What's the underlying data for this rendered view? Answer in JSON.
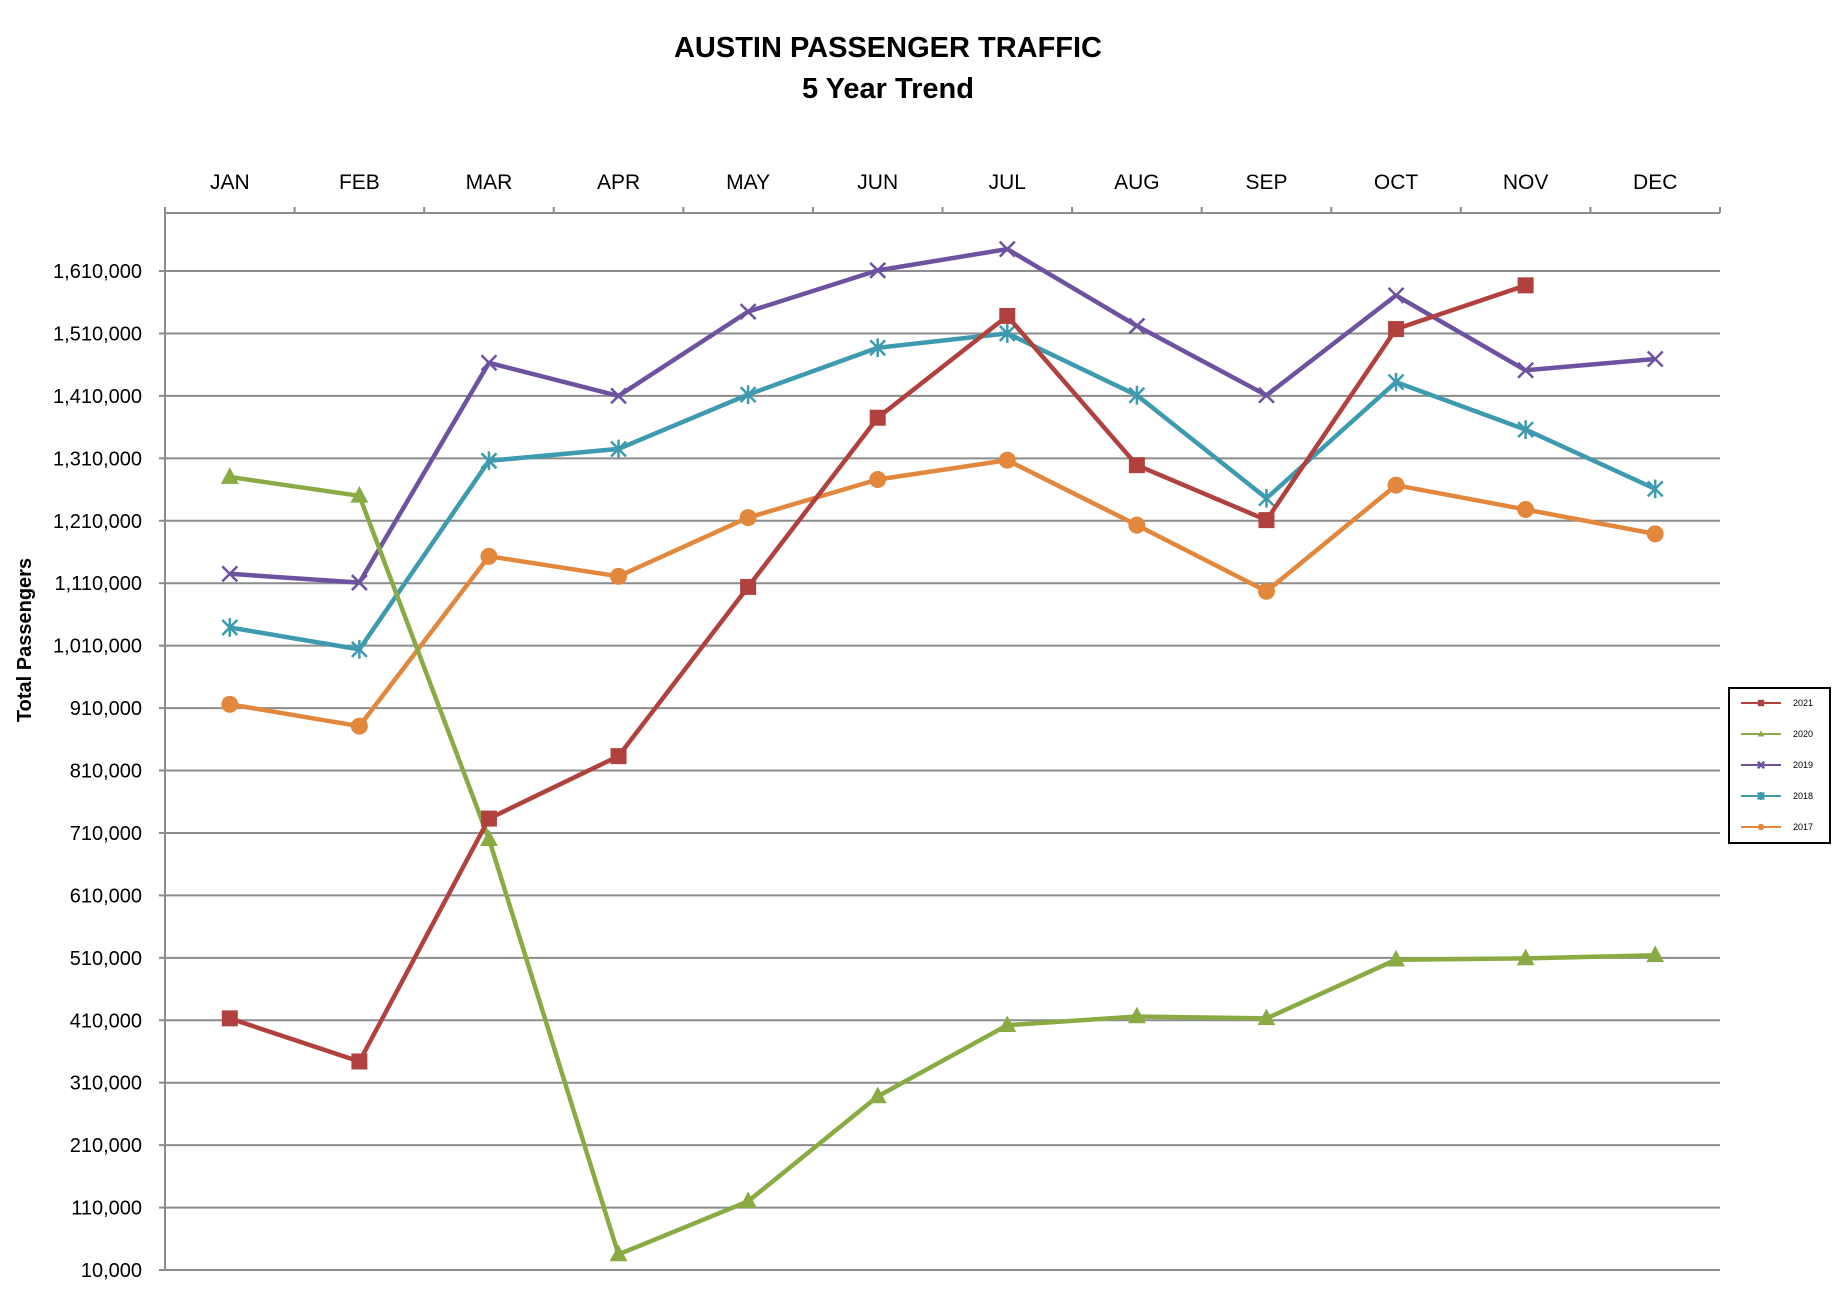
{
  "chart_data": {
    "type": "line",
    "title": "AUSTIN PASSENGER TRAFFIC",
    "subtitle": "5 Year Trend",
    "xlabel": "",
    "ylabel": "Total Passengers",
    "categories": [
      "JAN",
      "FEB",
      "MAR",
      "APR",
      "MAY",
      "JUN",
      "JUL",
      "AUG",
      "SEP",
      "OCT",
      "NOV",
      "DEC"
    ],
    "xaxis_position": "top",
    "ylim": [
      10000,
      1650000
    ],
    "yticks": [
      10000,
      110000,
      210000,
      310000,
      410000,
      510000,
      610000,
      710000,
      810000,
      910000,
      1010000,
      1110000,
      1210000,
      1310000,
      1410000,
      1510000,
      1610000
    ],
    "ytick_labels": [
      "10,000",
      "110,000",
      "210,000",
      "310,000",
      "410,000",
      "510,000",
      "610,000",
      "710,000",
      "810,000",
      "910,000",
      "1,010,000",
      "1,110,000",
      "1,210,000",
      "1,310,000",
      "1,410,000",
      "1,510,000",
      "1,610,000"
    ],
    "grid": true,
    "legend_position": "right",
    "series": [
      {
        "name": "2021",
        "color": "#b0413e",
        "marker": "square",
        "values": [
          413000,
          344000,
          733000,
          833000,
          1104000,
          1375000,
          1538000,
          1299000,
          1211000,
          1517000,
          1587000,
          null
        ]
      },
      {
        "name": "2020",
        "color": "#8aab44",
        "marker": "triangle",
        "values": [
          1280000,
          1250000,
          700000,
          35000,
          120000,
          288000,
          402000,
          416000,
          413000,
          507000,
          509000,
          514000
        ]
      },
      {
        "name": "2019",
        "color": "#6d52a0",
        "marker": "x",
        "values": [
          1125000,
          1111000,
          1463000,
          1410000,
          1545000,
          1611000,
          1645000,
          1522000,
          1411000,
          1571000,
          1451000,
          1469000
        ]
      },
      {
        "name": "2018",
        "color": "#3e9aaf",
        "marker": "asterisk",
        "values": [
          1039000,
          1004000,
          1306000,
          1325000,
          1412000,
          1487000,
          1510000,
          1411000,
          1246000,
          1432000,
          1356000,
          1261000
        ]
      },
      {
        "name": "2017",
        "color": "#e2873b",
        "marker": "circle",
        "values": [
          916000,
          881000,
          1153000,
          1121000,
          1215000,
          1276000,
          1307000,
          1203000,
          1097000,
          1267000,
          1228000,
          1189000
        ]
      }
    ]
  }
}
